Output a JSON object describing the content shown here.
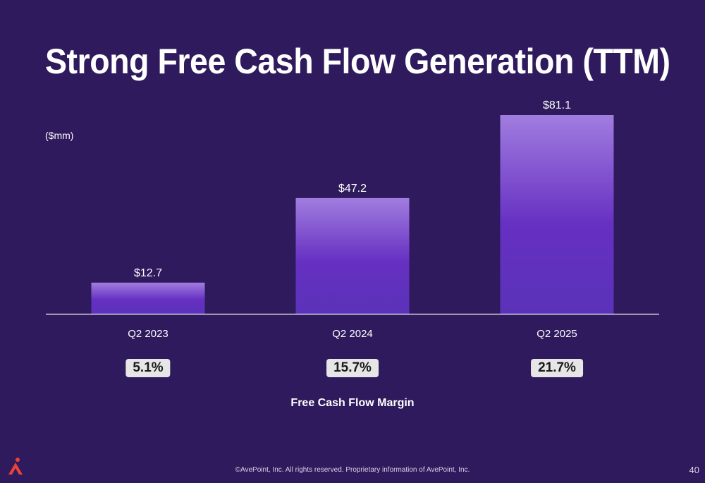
{
  "page": {
    "title": "Strong Free Cash Flow Generation (TTM)",
    "unit_label": "($mm)",
    "footer": "©AvePoint, Inc. All rights reserved. Proprietary information of AvePoint, Inc.",
    "page_number": "40",
    "margin_label": "Free Cash Flow Margin",
    "margins": [
      "5.1%",
      "15.7%",
      "21.7%"
    ]
  },
  "colors": {
    "background": "#2e1a5c",
    "bar_top": "#a17ddf",
    "bar_mid": "#6630c2",
    "bar_bottom": "#5a32b8",
    "logo": "#e8443a"
  },
  "chart_data": {
    "type": "bar",
    "title": "Strong Free Cash Flow Generation (TTM)",
    "ylabel": "($mm)",
    "categories": [
      "Q2 2023",
      "Q2 2024",
      "Q2 2025"
    ],
    "values": [
      12.7,
      47.2,
      81.1
    ],
    "data_labels": [
      "$12.7",
      "$47.2",
      "$81.1"
    ],
    "ylim": [
      0,
      81.1
    ],
    "grid": false,
    "legend": "none"
  }
}
